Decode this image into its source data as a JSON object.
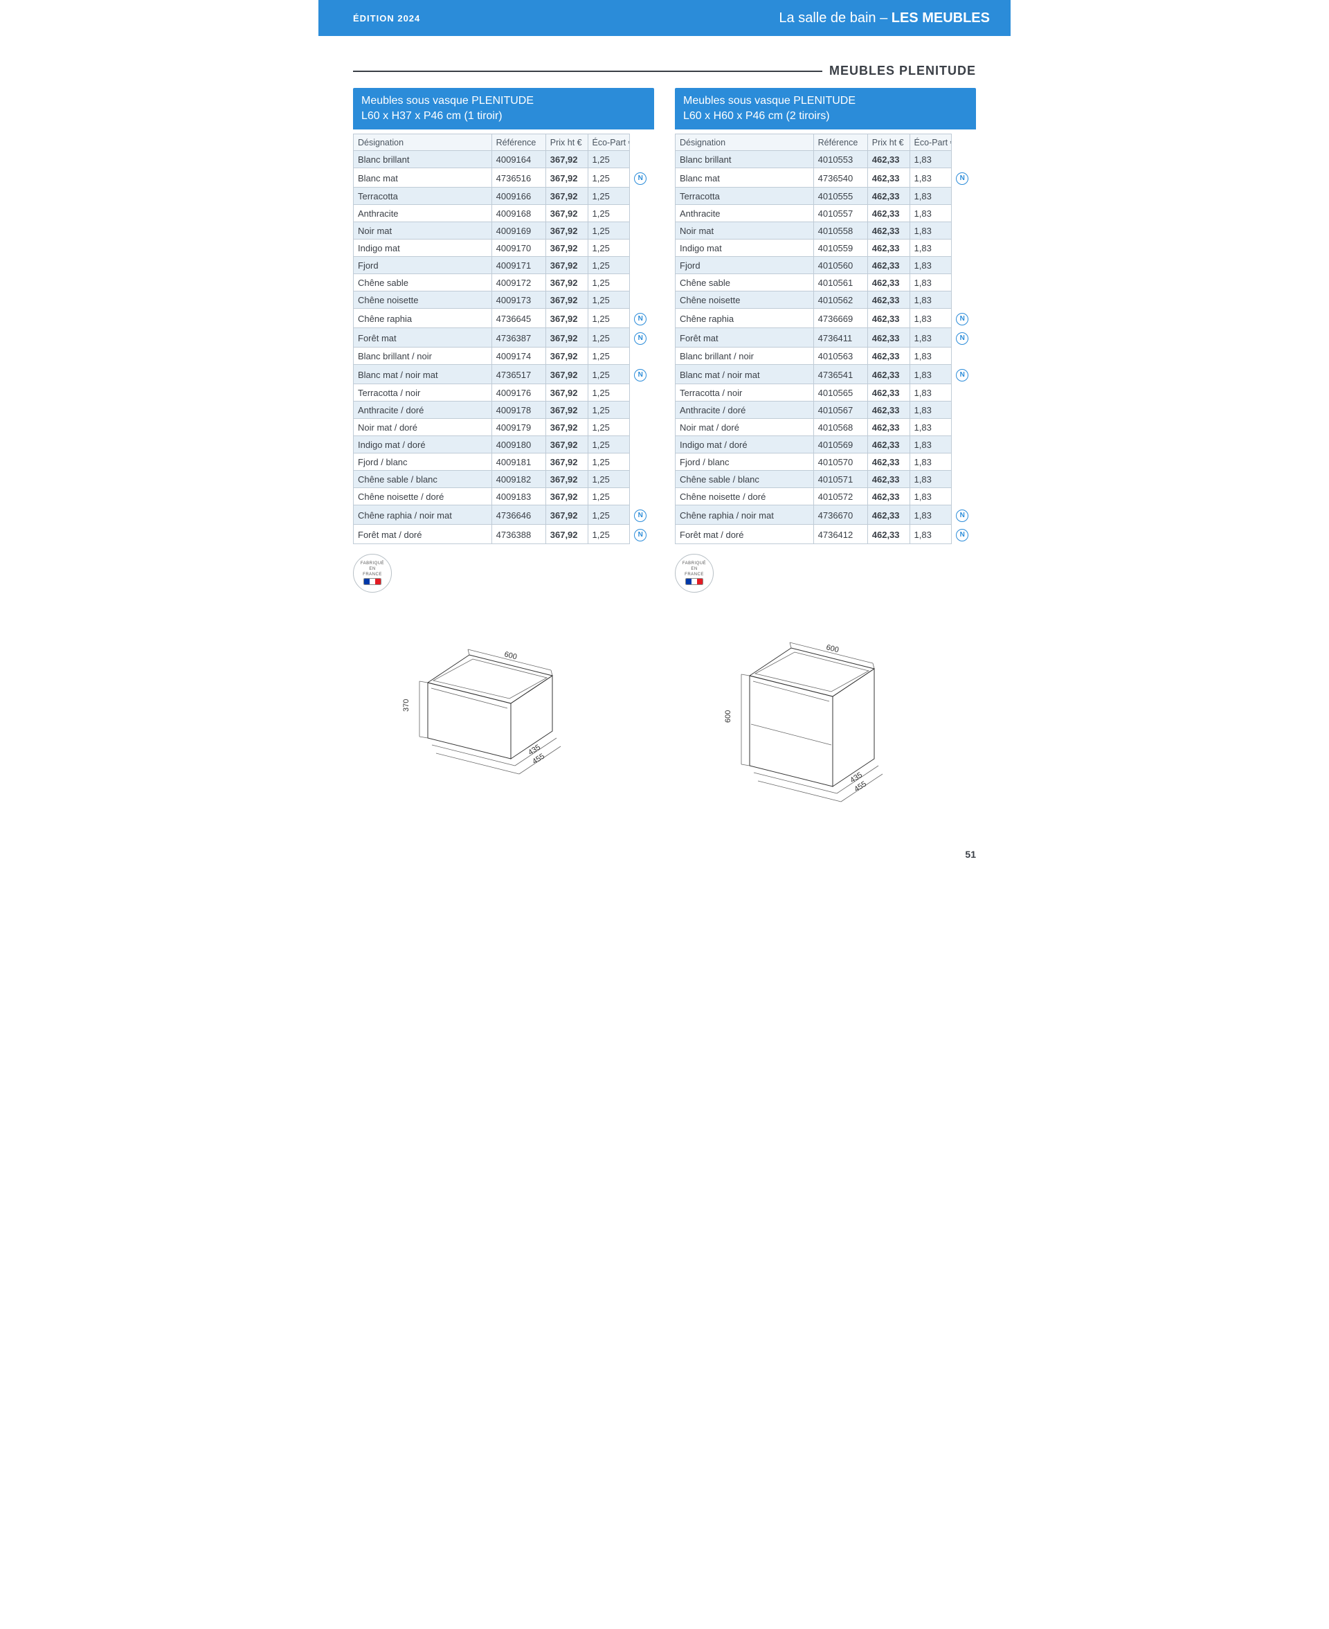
{
  "header": {
    "edition": "ÉDITION 2024",
    "breadcrumb_light": "La salle de bain – ",
    "breadcrumb_bold": "LES MEUBLES"
  },
  "section_title": "MEUBLES PLENITUDE",
  "page_number": "51",
  "made_in_label_top": "FABRIQUÉ",
  "made_in_label_mid": "EN",
  "made_in_label_bottom": "FRANCE",
  "left": {
    "title_line1": "Meubles sous vasque PLENITUDE",
    "title_line2": "L60 x H37 x P46 cm (1 tiroir)",
    "columns": {
      "des": "Désignation",
      "ref": "Référence",
      "pri": "Prix ht €",
      "eco": "Éco-Part €"
    },
    "rows": [
      {
        "des": "Blanc brillant",
        "ref": "4009164",
        "pri": "367,92",
        "eco": "1,25",
        "n": false,
        "alt": true
      },
      {
        "des": "Blanc mat",
        "ref": "4736516",
        "pri": "367,92",
        "eco": "1,25",
        "n": true,
        "alt": false
      },
      {
        "des": "Terracotta",
        "ref": "4009166",
        "pri": "367,92",
        "eco": "1,25",
        "n": false,
        "alt": true
      },
      {
        "des": "Anthracite",
        "ref": "4009168",
        "pri": "367,92",
        "eco": "1,25",
        "n": false,
        "alt": false
      },
      {
        "des": "Noir mat",
        "ref": "4009169",
        "pri": "367,92",
        "eco": "1,25",
        "n": false,
        "alt": true
      },
      {
        "des": "Indigo mat",
        "ref": "4009170",
        "pri": "367,92",
        "eco": "1,25",
        "n": false,
        "alt": false
      },
      {
        "des": "Fjord",
        "ref": "4009171",
        "pri": "367,92",
        "eco": "1,25",
        "n": false,
        "alt": true
      },
      {
        "des": "Chêne sable",
        "ref": "4009172",
        "pri": "367,92",
        "eco": "1,25",
        "n": false,
        "alt": false
      },
      {
        "des": "Chêne noisette",
        "ref": "4009173",
        "pri": "367,92",
        "eco": "1,25",
        "n": false,
        "alt": true
      },
      {
        "des": "Chêne raphia",
        "ref": "4736645",
        "pri": "367,92",
        "eco": "1,25",
        "n": true,
        "alt": false
      },
      {
        "des": "Forêt mat",
        "ref": "4736387",
        "pri": "367,92",
        "eco": "1,25",
        "n": true,
        "alt": true
      },
      {
        "des": "Blanc brillant / noir",
        "ref": "4009174",
        "pri": "367,92",
        "eco": "1,25",
        "n": false,
        "alt": false
      },
      {
        "des": "Blanc mat / noir mat",
        "ref": "4736517",
        "pri": "367,92",
        "eco": "1,25",
        "n": true,
        "alt": true
      },
      {
        "des": "Terracotta / noir",
        "ref": "4009176",
        "pri": "367,92",
        "eco": "1,25",
        "n": false,
        "alt": false
      },
      {
        "des": "Anthracite / doré",
        "ref": "4009178",
        "pri": "367,92",
        "eco": "1,25",
        "n": false,
        "alt": true
      },
      {
        "des": "Noir mat / doré",
        "ref": "4009179",
        "pri": "367,92",
        "eco": "1,25",
        "n": false,
        "alt": false
      },
      {
        "des": "Indigo mat / doré",
        "ref": "4009180",
        "pri": "367,92",
        "eco": "1,25",
        "n": false,
        "alt": true
      },
      {
        "des": "Fjord / blanc",
        "ref": "4009181",
        "pri": "367,92",
        "eco": "1,25",
        "n": false,
        "alt": false
      },
      {
        "des": "Chêne sable / blanc",
        "ref": "4009182",
        "pri": "367,92",
        "eco": "1,25",
        "n": false,
        "alt": true
      },
      {
        "des": "Chêne noisette / doré",
        "ref": "4009183",
        "pri": "367,92",
        "eco": "1,25",
        "n": false,
        "alt": false
      },
      {
        "des": "Chêne raphia / noir mat",
        "ref": "4736646",
        "pri": "367,92",
        "eco": "1,25",
        "n": true,
        "alt": true
      },
      {
        "des": "Forêt mat / doré",
        "ref": "4736388",
        "pri": "367,92",
        "eco": "1,25",
        "n": true,
        "alt": false
      }
    ],
    "drawing": {
      "width": "600",
      "height": "370",
      "depth_top": "435",
      "depth_bottom": "455"
    }
  },
  "right": {
    "title_line1": "Meubles sous vasque PLENITUDE",
    "title_line2": "L60 x H60 x P46 cm (2 tiroirs)",
    "columns": {
      "des": "Désignation",
      "ref": "Référence",
      "pri": "Prix ht €",
      "eco": "Éco-Part €"
    },
    "rows": [
      {
        "des": "Blanc brillant",
        "ref": "4010553",
        "pri": "462,33",
        "eco": "1,83",
        "n": false,
        "alt": true
      },
      {
        "des": "Blanc mat",
        "ref": "4736540",
        "pri": "462,33",
        "eco": "1,83",
        "n": true,
        "alt": false
      },
      {
        "des": "Terracotta",
        "ref": "4010555",
        "pri": "462,33",
        "eco": "1,83",
        "n": false,
        "alt": true
      },
      {
        "des": "Anthracite",
        "ref": "4010557",
        "pri": "462,33",
        "eco": "1,83",
        "n": false,
        "alt": false
      },
      {
        "des": "Noir mat",
        "ref": "4010558",
        "pri": "462,33",
        "eco": "1,83",
        "n": false,
        "alt": true
      },
      {
        "des": "Indigo mat",
        "ref": "4010559",
        "pri": "462,33",
        "eco": "1,83",
        "n": false,
        "alt": false
      },
      {
        "des": "Fjord",
        "ref": "4010560",
        "pri": "462,33",
        "eco": "1,83",
        "n": false,
        "alt": true
      },
      {
        "des": "Chêne sable",
        "ref": "4010561",
        "pri": "462,33",
        "eco": "1,83",
        "n": false,
        "alt": false
      },
      {
        "des": "Chêne noisette",
        "ref": "4010562",
        "pri": "462,33",
        "eco": "1,83",
        "n": false,
        "alt": true
      },
      {
        "des": "Chêne raphia",
        "ref": "4736669",
        "pri": "462,33",
        "eco": "1,83",
        "n": true,
        "alt": false
      },
      {
        "des": "Forêt mat",
        "ref": "4736411",
        "pri": "462,33",
        "eco": "1,83",
        "n": true,
        "alt": true
      },
      {
        "des": "Blanc brillant / noir",
        "ref": "4010563",
        "pri": "462,33",
        "eco": "1,83",
        "n": false,
        "alt": false
      },
      {
        "des": "Blanc mat / noir mat",
        "ref": "4736541",
        "pri": "462,33",
        "eco": "1,83",
        "n": true,
        "alt": true
      },
      {
        "des": "Terracotta / noir",
        "ref": "4010565",
        "pri": "462,33",
        "eco": "1,83",
        "n": false,
        "alt": false
      },
      {
        "des": "Anthracite / doré",
        "ref": "4010567",
        "pri": "462,33",
        "eco": "1,83",
        "n": false,
        "alt": true
      },
      {
        "des": "Noir mat / doré",
        "ref": "4010568",
        "pri": "462,33",
        "eco": "1,83",
        "n": false,
        "alt": false
      },
      {
        "des": "Indigo mat / doré",
        "ref": "4010569",
        "pri": "462,33",
        "eco": "1,83",
        "n": false,
        "alt": true
      },
      {
        "des": "Fjord / blanc",
        "ref": "4010570",
        "pri": "462,33",
        "eco": "1,83",
        "n": false,
        "alt": false
      },
      {
        "des": "Chêne sable / blanc",
        "ref": "4010571",
        "pri": "462,33",
        "eco": "1,83",
        "n": false,
        "alt": true
      },
      {
        "des": "Chêne noisette / doré",
        "ref": "4010572",
        "pri": "462,33",
        "eco": "1,83",
        "n": false,
        "alt": false
      },
      {
        "des": "Chêne raphia / noir mat",
        "ref": "4736670",
        "pri": "462,33",
        "eco": "1,83",
        "n": true,
        "alt": true
      },
      {
        "des": "Forêt mat / doré",
        "ref": "4736412",
        "pri": "462,33",
        "eco": "1,83",
        "n": true,
        "alt": false
      }
    ],
    "drawing": {
      "width": "600",
      "height": "600",
      "depth_top": "435",
      "depth_bottom": "455"
    }
  }
}
